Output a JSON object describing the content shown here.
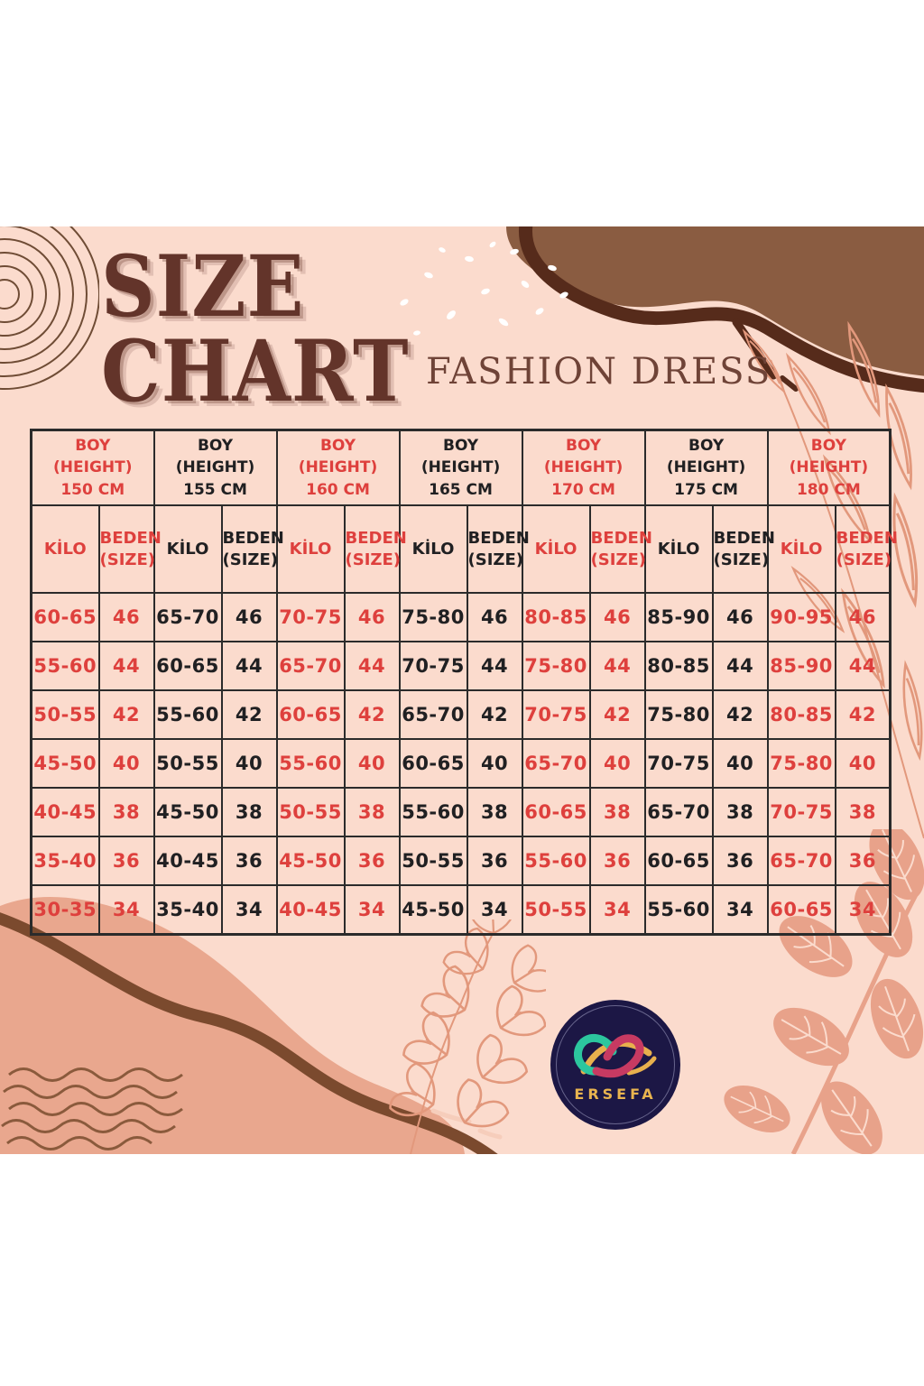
{
  "page": {
    "title_line1": "SIZE",
    "title_line2": "CHART",
    "subtitle": "FASHION DRESS"
  },
  "logo": {
    "brand": "ERSEFA"
  },
  "colors": {
    "background": "#ffffff",
    "canvas_pink": "#fbdbcd",
    "accent_red": "#de403d",
    "text_black": "#202022",
    "title_brown": "#63342a",
    "blob_brown": "#8a5c41",
    "blob_outline_brown": "#562b1b",
    "salmon_blob": "#e9a78e",
    "leaf_line": "#e2987c",
    "logo_navy": "#1c1745",
    "logo_gold": "#e9b44f",
    "logo_teal": "#2cc69e",
    "logo_crimson": "#c73a62"
  },
  "chart_data": {
    "type": "table",
    "title": "SIZE CHART",
    "subtitle": "FASHION DRESS",
    "header_row_label_top": "BOY",
    "header_row_label_mid": "(HEIGHT)",
    "sub_headers": {
      "kilo": "KİLO",
      "size_line1": "BEDEN",
      "size_line2": "(SIZE)"
    },
    "groups": [
      {
        "height": "150 CM",
        "accent": "red"
      },
      {
        "height": "155 CM",
        "accent": "black"
      },
      {
        "height": "160 CM",
        "accent": "red"
      },
      {
        "height": "165 CM",
        "accent": "black"
      },
      {
        "height": "170 CM",
        "accent": "red"
      },
      {
        "height": "175 CM",
        "accent": "black"
      },
      {
        "height": "180 CM",
        "accent": "red"
      }
    ],
    "rows": [
      {
        "size": "46",
        "kilos": [
          "60-65",
          "65-70",
          "70-75",
          "75-80",
          "80-85",
          "85-90",
          "90-95"
        ]
      },
      {
        "size": "44",
        "kilos": [
          "55-60",
          "60-65",
          "65-70",
          "70-75",
          "75-80",
          "80-85",
          "85-90"
        ]
      },
      {
        "size": "42",
        "kilos": [
          "50-55",
          "55-60",
          "60-65",
          "65-70",
          "70-75",
          "75-80",
          "80-85"
        ]
      },
      {
        "size": "40",
        "kilos": [
          "45-50",
          "50-55",
          "55-60",
          "60-65",
          "65-70",
          "70-75",
          "75-80"
        ]
      },
      {
        "size": "38",
        "kilos": [
          "40-45",
          "45-50",
          "50-55",
          "55-60",
          "60-65",
          "65-70",
          "70-75"
        ]
      },
      {
        "size": "36",
        "kilos": [
          "35-40",
          "40-45",
          "45-50",
          "50-55",
          "55-60",
          "60-65",
          "65-70"
        ]
      },
      {
        "size": "34",
        "kilos": [
          "30-35",
          "35-40",
          "40-45",
          "45-50",
          "50-55",
          "55-60",
          "60-65"
        ]
      }
    ]
  }
}
